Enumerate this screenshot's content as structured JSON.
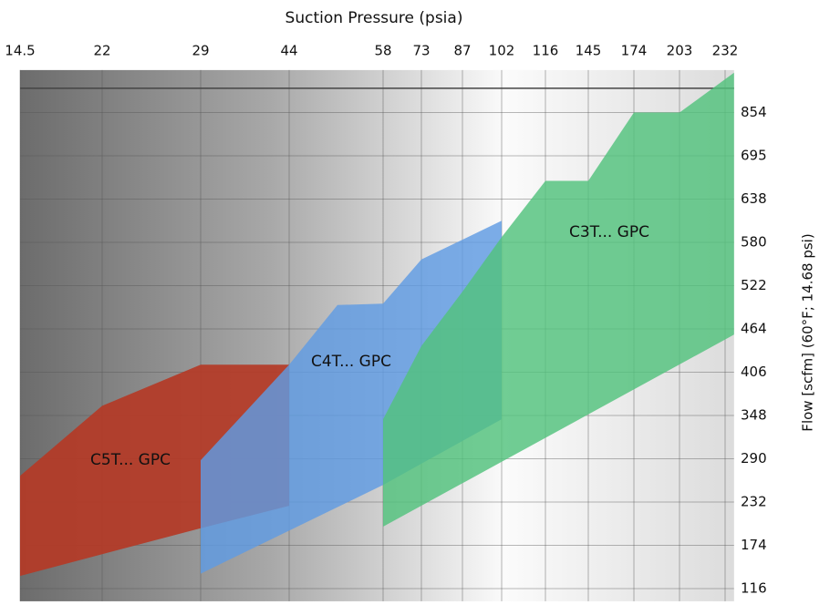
{
  "chart_data": {
    "type": "area-regions",
    "title": "Suction Pressure (psia)",
    "y_label": "Flow [scfm] (60°F; 14.68 psi)",
    "xlim": [
      14.5,
      240
    ],
    "xticks": [
      14.5,
      22,
      29,
      44,
      58,
      73,
      87,
      102,
      116,
      145,
      174,
      203,
      232
    ],
    "ylim": [
      99,
      1010
    ],
    "yticks": [
      116,
      174,
      232,
      290,
      348,
      406,
      464,
      522,
      580,
      638,
      695,
      854
    ],
    "grid": true,
    "regions": [
      {
        "name": "C5T... GPC",
        "color": "#b43a26",
        "x": [
          14.5,
          22,
          29,
          44,
          44,
          29,
          14.5
        ],
        "y": [
          267,
          361,
          416,
          416,
          227,
          197,
          133
        ]
      },
      {
        "name": "C4T... GPC",
        "color": "#5f9be3",
        "x": [
          29,
          44,
          51.2,
          58,
          73,
          102,
          102,
          58,
          29
        ],
        "y": [
          288,
          416,
          496,
          498,
          557,
          609,
          343,
          255,
          136
        ]
      },
      {
        "name": "C3T... GPC",
        "color": "#52c27c",
        "x": [
          58,
          73,
          87,
          102,
          116,
          145,
          174,
          203,
          240,
          240,
          58
        ],
        "y": [
          343,
          441,
          514,
          587,
          662,
          662,
          854,
          854,
          1010,
          459,
          199
        ]
      }
    ]
  }
}
